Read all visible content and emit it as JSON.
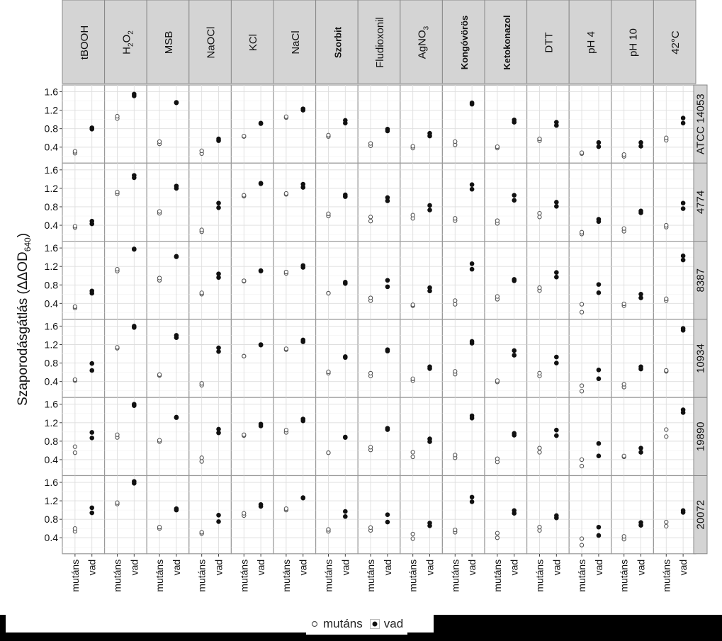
{
  "chart_data": {
    "type": "scatter",
    "ylabel": "Szaporodásgátlás (ΔΔOD",
    "ylabel_sub": "640",
    "ylabel_close": ")",
    "ylim": [
      0.1,
      1.7
    ],
    "yticks": [
      "1.6",
      "1.2",
      "0.8",
      "0.4"
    ],
    "ytick_values": [
      1.6,
      1.2,
      0.8,
      0.4
    ],
    "grid": true,
    "x_categories": [
      "mutáns",
      "vad"
    ],
    "legend": {
      "position": "bottom",
      "entries": [
        "mutáns",
        "vad"
      ]
    },
    "columns": [
      {
        "label": "tBOOH",
        "bold": false
      },
      {
        "label": "H2O2",
        "main": "H",
        "s1": "2",
        "m2": "O",
        "s2": "2",
        "bold": false
      },
      {
        "label": "MSB",
        "bold": false
      },
      {
        "label": "NaOCl",
        "bold": false
      },
      {
        "label": "KCl",
        "bold": false
      },
      {
        "label": "NaCl",
        "bold": false
      },
      {
        "label": "Szorbit",
        "bold": true
      },
      {
        "label": "Fludioxonil",
        "bold": false
      },
      {
        "label": "AgNO3",
        "main": "AgNO",
        "s1": "3",
        "bold": false
      },
      {
        "label": "Kongóvörös",
        "bold": true
      },
      {
        "label": "Ketokonazol",
        "bold": true
      },
      {
        "label": "DTT",
        "bold": false
      },
      {
        "label": "pH 4",
        "bold": false
      },
      {
        "label": "pH 10",
        "bold": false
      },
      {
        "label": "42°C",
        "bold": false
      }
    ],
    "rows": [
      "ATCC 14053",
      "4774",
      "8387",
      "10934",
      "19890",
      "20072"
    ],
    "mutans": [
      [
        [
          0.27,
          0.31
        ],
        [
          1.02,
          1.07
        ],
        [
          0.47,
          0.52
        ],
        [
          0.26,
          0.32
        ],
        [
          0.63,
          0.64
        ],
        [
          1.04,
          1.06
        ],
        [
          0.63,
          0.66
        ],
        [
          0.43,
          0.48
        ],
        [
          0.38,
          0.42
        ],
        [
          0.45,
          0.52
        ],
        [
          0.38,
          0.41
        ],
        [
          0.54,
          0.58
        ],
        [
          0.26,
          0.28
        ],
        [
          0.2,
          0.24
        ],
        [
          0.55,
          0.6
        ]
      ],
      [
        [
          0.35,
          0.38
        ],
        [
          1.08,
          1.12
        ],
        [
          0.66,
          0.7
        ],
        [
          0.26,
          0.3
        ],
        [
          1.03,
          1.05
        ],
        [
          1.07,
          1.09
        ],
        [
          0.6,
          0.65
        ],
        [
          0.49,
          0.58
        ],
        [
          0.55,
          0.62
        ],
        [
          0.5,
          0.55
        ],
        [
          0.44,
          0.5
        ],
        [
          0.58,
          0.66
        ],
        [
          0.21,
          0.25
        ],
        [
          0.27,
          0.33
        ],
        [
          0.36,
          0.4
        ]
      ],
      [
        [
          0.3,
          0.33
        ],
        [
          1.1,
          1.14
        ],
        [
          0.9,
          0.95
        ],
        [
          0.6,
          0.63
        ],
        [
          0.88,
          0.89
        ],
        [
          1.05,
          1.08
        ],
        [
          0.62,
          0.62
        ],
        [
          0.46,
          0.52
        ],
        [
          0.35,
          0.37
        ],
        [
          0.38,
          0.46
        ],
        [
          0.49,
          0.55
        ],
        [
          0.68,
          0.74
        ],
        [
          0.21,
          0.38
        ],
        [
          0.35,
          0.39
        ],
        [
          0.46,
          0.5
        ]
      ],
      [
        [
          0.42,
          0.44
        ],
        [
          1.12,
          1.14
        ],
        [
          0.53,
          0.55
        ],
        [
          0.32,
          0.36
        ],
        [
          0.95,
          0.95
        ],
        [
          1.09,
          1.11
        ],
        [
          0.58,
          0.61
        ],
        [
          0.52,
          0.58
        ],
        [
          0.42,
          0.46
        ],
        [
          0.56,
          0.62
        ],
        [
          0.39,
          0.42
        ],
        [
          0.52,
          0.58
        ],
        [
          0.19,
          0.31
        ],
        [
          0.28,
          0.34
        ],
        [
          0.62,
          0.64
        ]
      ],
      [
        [
          0.55,
          0.68
        ],
        [
          0.88,
          0.94
        ],
        [
          0.79,
          0.82
        ],
        [
          0.36,
          0.44
        ],
        [
          0.92,
          0.94
        ],
        [
          0.99,
          1.04
        ],
        [
          0.55,
          0.55
        ],
        [
          0.61,
          0.67
        ],
        [
          0.46,
          0.56
        ],
        [
          0.44,
          0.5
        ],
        [
          0.35,
          0.42
        ],
        [
          0.56,
          0.65
        ],
        [
          0.26,
          0.4
        ],
        [
          0.46,
          0.48
        ],
        [
          0.9,
          1.05
        ]
      ],
      [
        [
          0.54,
          0.6
        ],
        [
          1.13,
          1.16
        ],
        [
          0.6,
          0.63
        ],
        [
          0.49,
          0.52
        ],
        [
          0.88,
          0.93
        ],
        [
          1.0,
          1.03
        ],
        [
          0.54,
          0.58
        ],
        [
          0.56,
          0.62
        ],
        [
          0.38,
          0.48
        ],
        [
          0.52,
          0.57
        ],
        [
          0.4,
          0.5
        ],
        [
          0.56,
          0.63
        ],
        [
          0.24,
          0.38
        ],
        [
          0.37,
          0.43
        ],
        [
          0.65,
          0.74
        ]
      ]
    ],
    "vad": [
      [
        [
          0.79,
          0.82
        ],
        [
          1.51,
          1.55
        ],
        [
          1.36,
          1.37
        ],
        [
          0.54,
          0.58
        ],
        [
          0.91,
          0.92
        ],
        [
          1.2,
          1.23
        ],
        [
          0.92,
          0.98
        ],
        [
          0.75,
          0.79
        ],
        [
          0.64,
          0.7
        ],
        [
          1.33,
          1.36
        ],
        [
          0.94,
          0.99
        ],
        [
          0.87,
          0.94
        ],
        [
          0.41,
          0.5
        ],
        [
          0.42,
          0.5
        ],
        [
          0.92,
          1.03
        ]
      ],
      [
        [
          0.43,
          0.49
        ],
        [
          1.43,
          1.48
        ],
        [
          1.2,
          1.25
        ],
        [
          0.78,
          0.88
        ],
        [
          1.3,
          1.31
        ],
        [
          1.22,
          1.29
        ],
        [
          1.02,
          1.06
        ],
        [
          0.93,
          1.0
        ],
        [
          0.73,
          0.83
        ],
        [
          1.18,
          1.28
        ],
        [
          0.94,
          1.05
        ],
        [
          0.81,
          0.9
        ],
        [
          0.48,
          0.53
        ],
        [
          0.67,
          0.71
        ],
        [
          0.76,
          0.88
        ]
      ],
      [
        [
          0.62,
          0.67
        ],
        [
          1.57,
          1.58
        ],
        [
          1.41,
          1.42
        ],
        [
          0.96,
          1.04
        ],
        [
          1.1,
          1.11
        ],
        [
          1.18,
          1.22
        ],
        [
          0.83,
          0.86
        ],
        [
          0.76,
          0.9
        ],
        [
          0.67,
          0.74
        ],
        [
          1.14,
          1.26
        ],
        [
          0.89,
          0.92
        ],
        [
          0.97,
          1.07
        ],
        [
          0.63,
          0.81
        ],
        [
          0.52,
          0.6
        ],
        [
          1.34,
          1.43
        ]
      ],
      [
        [
          0.64,
          0.79
        ],
        [
          1.57,
          1.6
        ],
        [
          1.35,
          1.4
        ],
        [
          1.05,
          1.13
        ],
        [
          1.19,
          1.2
        ],
        [
          1.26,
          1.3
        ],
        [
          0.92,
          0.94
        ],
        [
          1.06,
          1.09
        ],
        [
          0.68,
          0.72
        ],
        [
          1.23,
          1.27
        ],
        [
          0.97,
          1.07
        ],
        [
          0.8,
          0.93
        ],
        [
          0.46,
          0.65
        ],
        [
          0.67,
          0.72
        ],
        [
          1.51,
          1.55
        ]
      ],
      [
        [
          0.87,
          0.99
        ],
        [
          1.57,
          1.6
        ],
        [
          1.31,
          1.32
        ],
        [
          0.98,
          1.06
        ],
        [
          1.13,
          1.17
        ],
        [
          1.24,
          1.28
        ],
        [
          0.88,
          0.89
        ],
        [
          1.05,
          1.08
        ],
        [
          0.79,
          0.85
        ],
        [
          1.3,
          1.35
        ],
        [
          0.93,
          0.97
        ],
        [
          0.92,
          1.04
        ],
        [
          0.48,
          0.75
        ],
        [
          0.56,
          0.65
        ],
        [
          1.42,
          1.48
        ]
      ],
      [
        [
          0.94,
          1.05
        ],
        [
          1.58,
          1.62
        ],
        [
          1.0,
          1.03
        ],
        [
          0.75,
          0.89
        ],
        [
          1.08,
          1.12
        ],
        [
          1.26,
          1.27
        ],
        [
          0.86,
          0.97
        ],
        [
          0.74,
          0.9
        ],
        [
          0.66,
          0.72
        ],
        [
          1.18,
          1.28
        ],
        [
          0.93,
          0.99
        ],
        [
          0.83,
          0.88
        ],
        [
          0.45,
          0.63
        ],
        [
          0.67,
          0.73
        ],
        [
          0.95,
          0.99
        ]
      ]
    ]
  }
}
